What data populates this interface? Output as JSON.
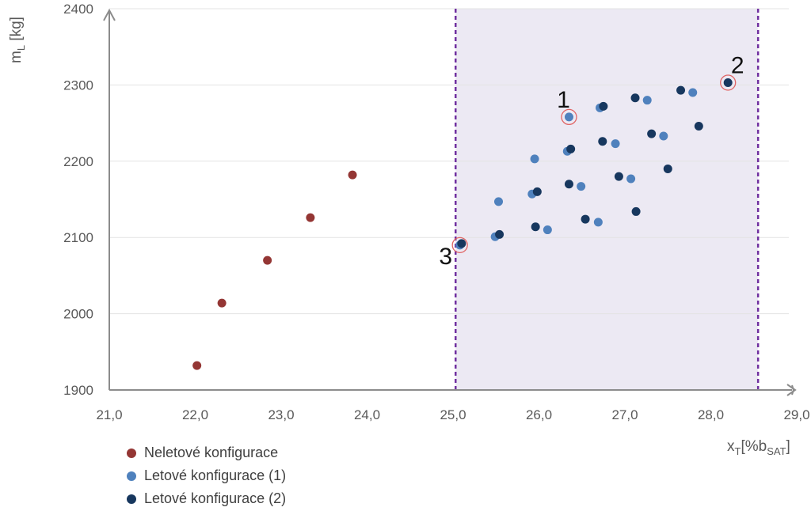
{
  "chart_data": {
    "type": "scatter",
    "xlabel": {
      "main": "x",
      "sub": "T",
      "rest": "[%b",
      "sub2": "SAT",
      "close": "]"
    },
    "ylabel": {
      "main": "m",
      "sub": "L",
      "rest": " [kg]"
    },
    "xlim": [
      21.0,
      29.0
    ],
    "ylim": [
      1900,
      2400
    ],
    "x_ticks": [
      "21,0",
      "22,0",
      "23,0",
      "24,0",
      "25,0",
      "26,0",
      "27,0",
      "28,0",
      "29,0"
    ],
    "y_ticks": [
      "1900",
      "2000",
      "2100",
      "2200",
      "2300",
      "2400"
    ],
    "grid": "horizontal",
    "shaded_region": {
      "x": [
        25.03,
        28.55
      ],
      "color": "#ece9f3"
    },
    "region_lines_color": "#7030a0",
    "series": [
      {
        "name": "Neletové konfigurace",
        "color": "#943634",
        "points": [
          [
            22.02,
            1932
          ],
          [
            22.31,
            2014
          ],
          [
            22.84,
            2070
          ],
          [
            23.34,
            2126
          ],
          [
            23.83,
            2182
          ]
        ]
      },
      {
        "name": "Letové konfigurace (1)",
        "color": "#4f81bd",
        "points": [
          [
            25.08,
            2090
          ],
          [
            25.49,
            2101
          ],
          [
            25.53,
            2147
          ],
          [
            25.92,
            2157
          ],
          [
            25.95,
            2203
          ],
          [
            26.1,
            2110
          ],
          [
            26.33,
            2213
          ],
          [
            26.35,
            2258
          ],
          [
            26.49,
            2167
          ],
          [
            26.69,
            2120
          ],
          [
            26.71,
            2270
          ],
          [
            26.89,
            2223
          ],
          [
            27.07,
            2177
          ],
          [
            27.26,
            2280
          ],
          [
            27.45,
            2233
          ],
          [
            27.79,
            2290
          ]
        ]
      },
      {
        "name": "Letové konfigurace (2)",
        "color": "#17375e",
        "points": [
          [
            25.1,
            2092
          ],
          [
            25.54,
            2104
          ],
          [
            25.96,
            2114
          ],
          [
            25.98,
            2160
          ],
          [
            26.35,
            2170
          ],
          [
            26.37,
            2216
          ],
          [
            26.54,
            2124
          ],
          [
            26.74,
            2226
          ],
          [
            26.75,
            2272
          ],
          [
            26.93,
            2180
          ],
          [
            27.12,
            2283
          ],
          [
            27.13,
            2134
          ],
          [
            27.31,
            2236
          ],
          [
            27.5,
            2190
          ],
          [
            27.65,
            2293
          ],
          [
            27.86,
            2246
          ],
          [
            28.2,
            2303
          ]
        ]
      }
    ],
    "annotations": [
      {
        "label": "1",
        "x": 26.35,
        "y": 2258
      },
      {
        "label": "2",
        "x": 28.2,
        "y": 2303
      },
      {
        "label": "3",
        "x": 25.08,
        "y": 2090
      }
    ],
    "annotation_circle_color": "#e06666"
  }
}
